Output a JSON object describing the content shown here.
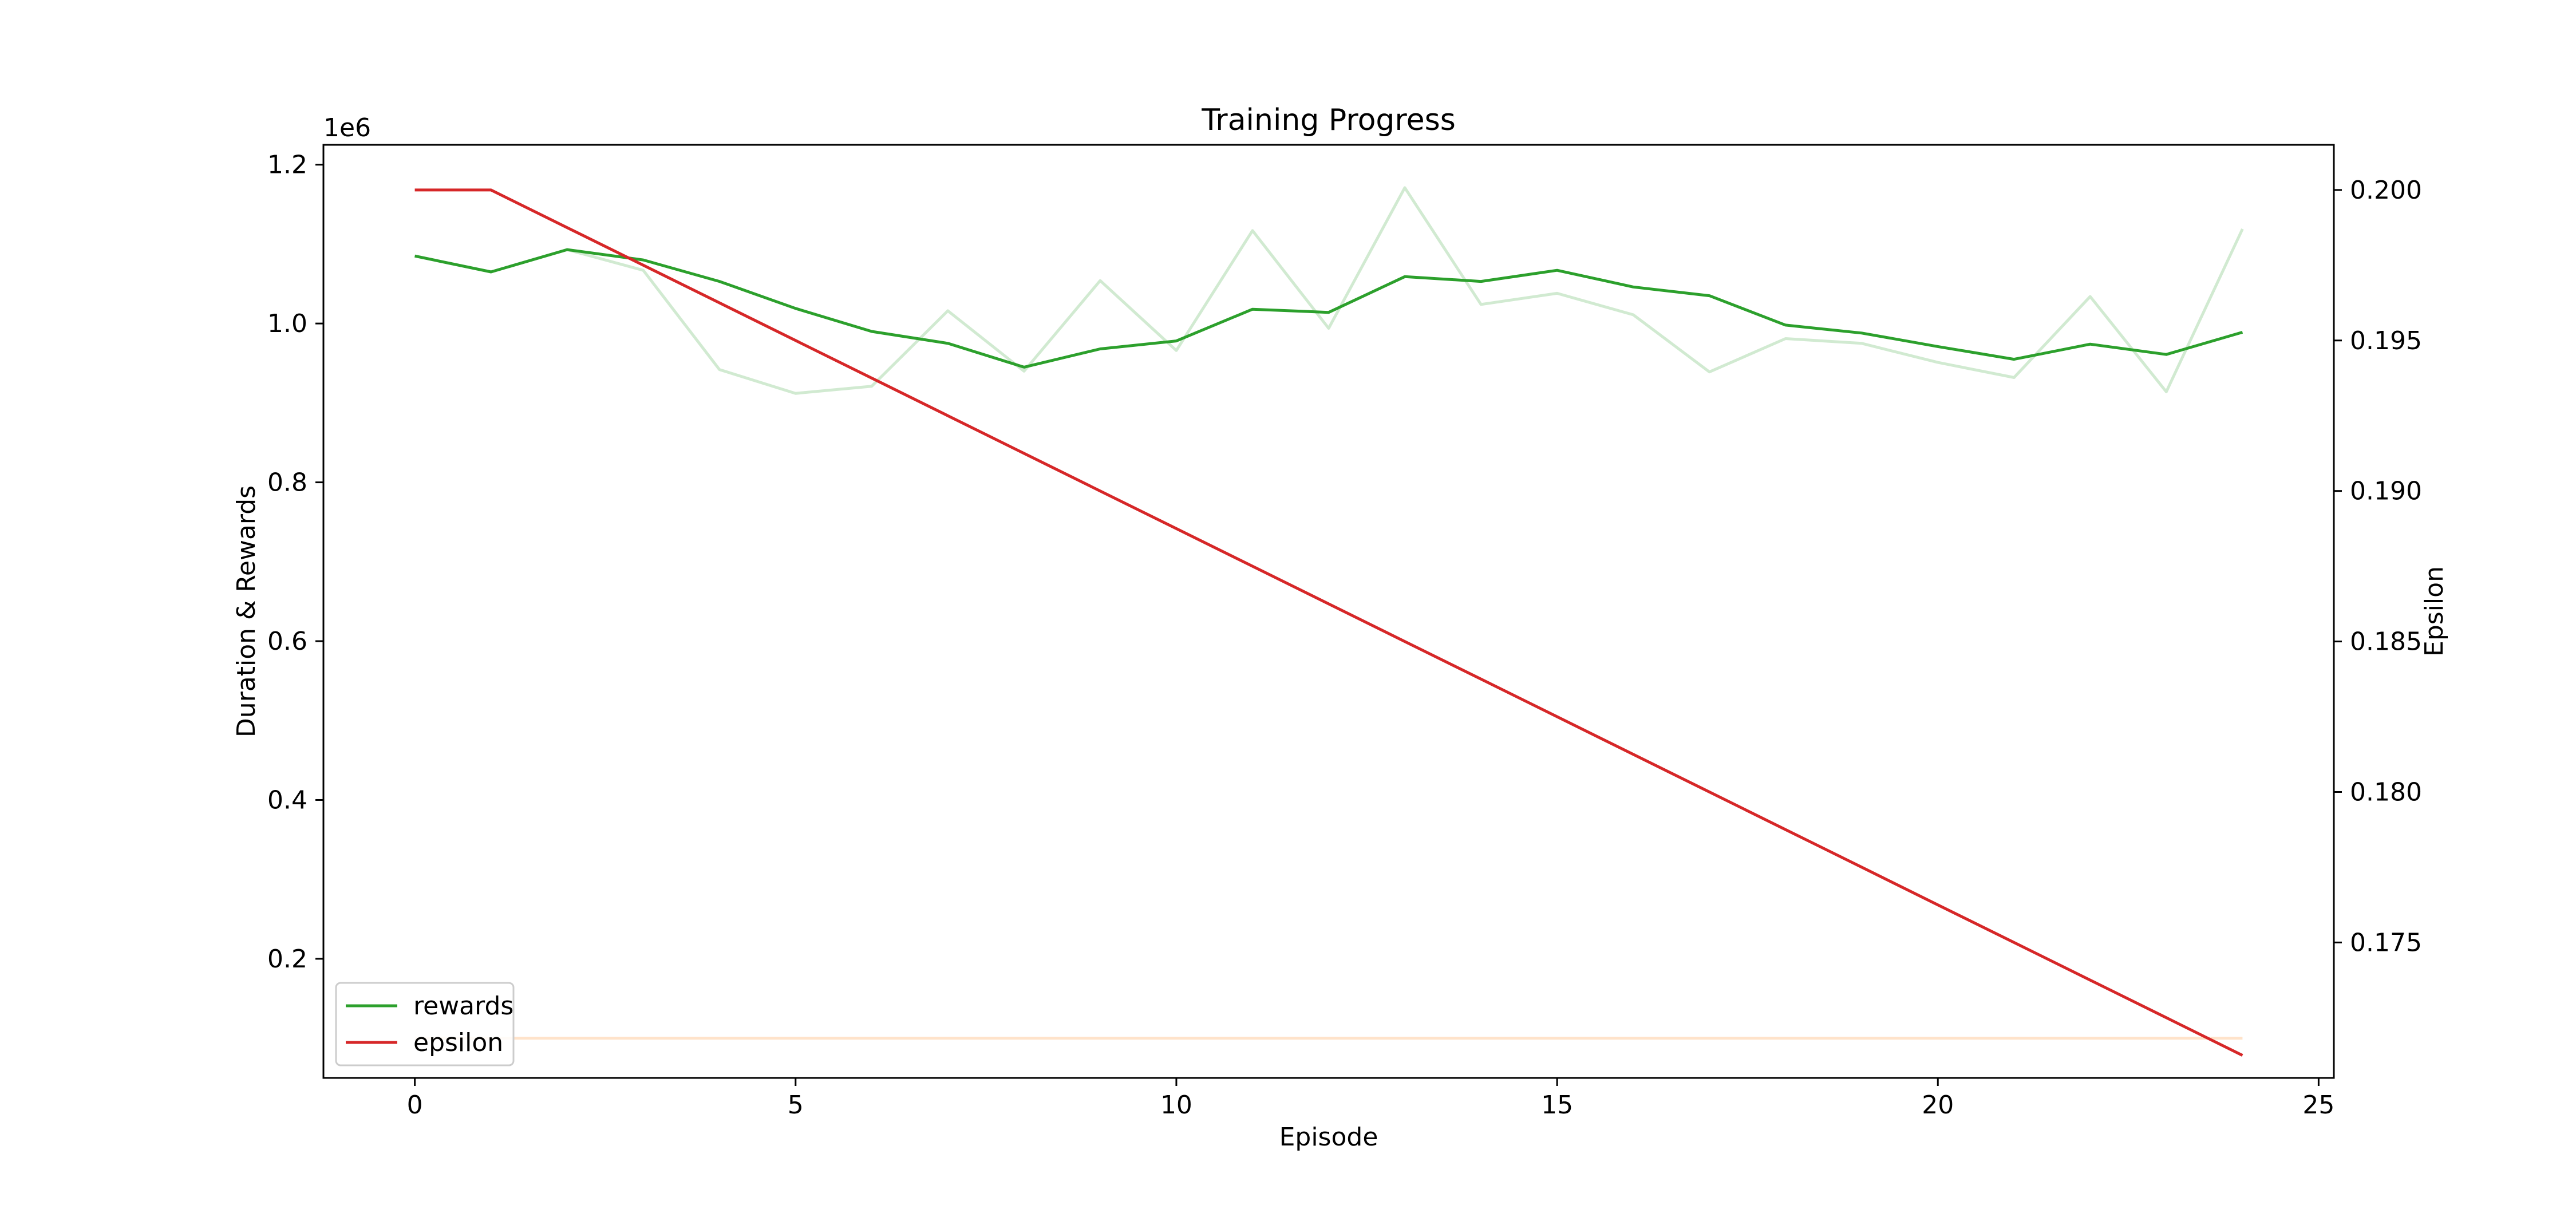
{
  "chart_data": {
    "type": "line",
    "title": "Training Progress",
    "xlabel": "Episode",
    "ylabel": "Duration & Rewards",
    "y2label": "Epsilon",
    "y_offset_text": "1e6",
    "xlim": [
      -1.2,
      25.2
    ],
    "ylim": [
      50000,
      1225000
    ],
    "y2lim": [
      0.1705,
      0.2015
    ],
    "x_ticks": [
      0,
      5,
      10,
      15,
      20,
      25
    ],
    "x_tick_labels": [
      "0",
      "5",
      "10",
      "15",
      "20",
      "25"
    ],
    "y_ticks": [
      200000,
      400000,
      600000,
      800000,
      1000000,
      1200000
    ],
    "y_tick_labels": [
      "0.2",
      "0.4",
      "0.6",
      "0.8",
      "1.0",
      "1.2"
    ],
    "y2_ticks": [
      0.175,
      0.18,
      0.185,
      0.19,
      0.195,
      0.2
    ],
    "y2_tick_labels": [
      "0.175",
      "0.180",
      "0.185",
      "0.190",
      "0.195",
      "0.200"
    ],
    "grid": false,
    "legend_position": "lower-left",
    "x": [
      0,
      1,
      2,
      3,
      4,
      5,
      6,
      7,
      8,
      9,
      10,
      11,
      12,
      13,
      14,
      15,
      16,
      17,
      18,
      19,
      20,
      21,
      22,
      23,
      24
    ],
    "series": [
      {
        "name": "rewards",
        "axis": "left",
        "color": "#2ca02c",
        "values": [
          1085000,
          1065000,
          1093000,
          1080000,
          1053000,
          1019000,
          990000,
          975000,
          945000,
          968000,
          978000,
          1018000,
          1014000,
          1059000,
          1053000,
          1067000,
          1046000,
          1035000,
          998000,
          988000,
          971000,
          955000,
          974000,
          961000,
          989000
        ]
      },
      {
        "name": "",
        "axis": "left",
        "color": "#2ca02c",
        "opacity": 0.22,
        "values": [
          1085000,
          1065000,
          1093000,
          1067000,
          942000,
          912000,
          921000,
          1016000,
          940000,
          1054000,
          966000,
          1117000,
          994000,
          1171000,
          1024000,
          1038000,
          1011000,
          939000,
          981000,
          975000,
          951000,
          932000,
          1034000,
          914000,
          1119000
        ]
      },
      {
        "name": "",
        "axis": "left",
        "color": "#ff7f0e",
        "opacity": 0.22,
        "values": [
          100000,
          100000,
          100000,
          100000,
          100000,
          100000,
          100000,
          100000,
          100000,
          100000,
          100000,
          100000,
          100000,
          100000,
          100000,
          100000,
          100000,
          100000,
          100000,
          100000,
          100000,
          100000,
          100000,
          100000,
          100000
        ]
      },
      {
        "name": "epsilon",
        "axis": "right",
        "color": "#d62728",
        "values": [
          0.2,
          0.2,
          0.19875,
          0.1975,
          0.19625,
          0.195,
          0.19375,
          0.1925,
          0.19125,
          0.19,
          0.18875,
          0.1875,
          0.18625,
          0.185,
          0.18375,
          0.1825,
          0.18125,
          0.18,
          0.17875,
          0.1775,
          0.17625,
          0.175,
          0.17375,
          0.1725,
          0.17125
        ]
      }
    ]
  }
}
